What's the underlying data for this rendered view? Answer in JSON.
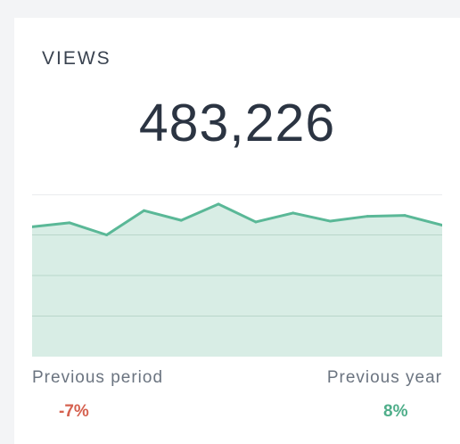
{
  "widget": {
    "title": "VIEWS",
    "value": "483,226",
    "colors": {
      "line": "#5ab897",
      "fill": "#d1eae0",
      "grid": "#d6d9dc",
      "negative": "#d5614f",
      "positive": "#4fae8a"
    }
  },
  "comparison": {
    "previous_period": {
      "label": "Previous period",
      "change": "-7%"
    },
    "previous_year": {
      "label": "Previous year",
      "change": "8%"
    }
  },
  "chart_data": {
    "type": "area",
    "title": "",
    "xlabel": "",
    "ylabel": "",
    "grid": true,
    "ylim": [
      0,
      100
    ],
    "values": [
      80,
      82.5,
      75,
      90,
      84,
      94,
      83,
      88.5,
      83.5,
      86.5,
      87,
      81
    ]
  }
}
